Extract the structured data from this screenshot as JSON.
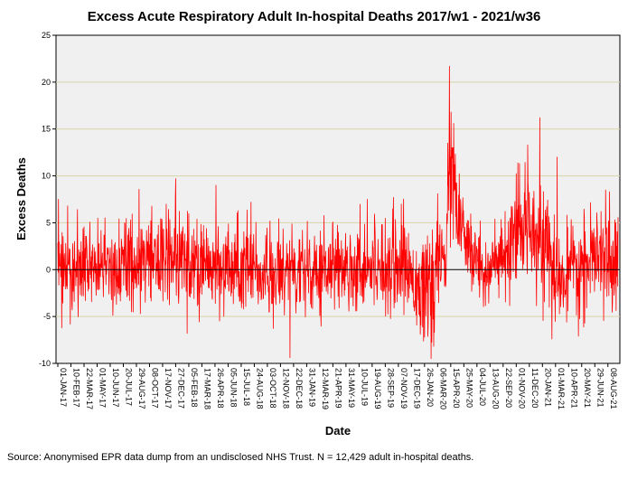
{
  "chart_data": {
    "type": "line",
    "title": "Excess Acute Respiratory Adult In-hospital Deaths 2017/w1 - 2021/w36",
    "xlabel": "Date",
    "ylabel": "Excess Deaths",
    "ylim": [
      -10,
      25
    ],
    "yticks": [
      -10,
      -5,
      0,
      5,
      10,
      15,
      20,
      25
    ],
    "grid": "horizontal",
    "reference_line": 0,
    "series_color": "#ff0000",
    "date_range": [
      "2017-01-01",
      "2021-09-08"
    ],
    "xtick_labels": [
      "01-JAN-17",
      "10-FEB-17",
      "22-MAR-17",
      "01-MAY-17",
      "10-JUN-17",
      "20-JUL-17",
      "29-AUG-17",
      "08-OCT-17",
      "17-NOV-17",
      "27-DEC-17",
      "05-FEB-18",
      "17-MAR-18",
      "26-APR-18",
      "05-JUN-18",
      "15-JUL-18",
      "24-AUG-18",
      "03-OCT-18",
      "12-NOV-18",
      "22-DEC-18",
      "31-JAN-19",
      "12-MAR-19",
      "21-APR-19",
      "31-MAY-19",
      "10-JUL-19",
      "19-AUG-19",
      "28-SEP-19",
      "07-NOV-19",
      "17-DEC-19",
      "26-JAN-20",
      "06-MAR-20",
      "15-APR-20",
      "25-MAY-20",
      "04-JUL-20",
      "13-AUG-20",
      "22-SEP-20",
      "01-NOV-20",
      "11-DEC-20",
      "20-JAN-21",
      "01-MAR-21",
      "10-APR-21",
      "20-MAY-21",
      "29-JUN-21",
      "08-AUG-21"
    ],
    "series": [
      {
        "name": "Excess Deaths",
        "profile": [
          {
            "day": 0,
            "level": 0.8,
            "spread": 3.2
          },
          {
            "day": 60,
            "level": 0.4,
            "spread": 3.0
          },
          {
            "day": 330,
            "level": 1.0,
            "spread": 3.6
          },
          {
            "day": 420,
            "level": 0.8,
            "spread": 3.2
          },
          {
            "day": 540,
            "level": 0.0,
            "spread": 3.0
          },
          {
            "day": 690,
            "level": -0.5,
            "spread": 3.4
          },
          {
            "day": 760,
            "level": 0.6,
            "spread": 3.2
          },
          {
            "day": 900,
            "level": 0.3,
            "spread": 3.0
          },
          {
            "day": 1050,
            "level": 0.8,
            "spread": 3.4
          },
          {
            "day": 1130,
            "level": -2.5,
            "spread": 3.6
          },
          {
            "day": 1185,
            "level": 2.0,
            "spread": 3.6
          },
          {
            "day": 1195,
            "level": 8.0,
            "spread": 4.0
          },
          {
            "day": 1205,
            "level": 11.0,
            "spread": 4.5
          },
          {
            "day": 1220,
            "level": 6.0,
            "spread": 3.5
          },
          {
            "day": 1245,
            "level": 2.5,
            "spread": 3.0
          },
          {
            "day": 1300,
            "level": 0.0,
            "spread": 2.8
          },
          {
            "day": 1370,
            "level": 1.0,
            "spread": 3.0
          },
          {
            "day": 1410,
            "level": 4.0,
            "spread": 3.8
          },
          {
            "day": 1450,
            "level": 5.5,
            "spread": 4.0
          },
          {
            "day": 1480,
            "level": 3.0,
            "spread": 3.8
          },
          {
            "day": 1530,
            "level": -1.5,
            "spread": 3.2
          },
          {
            "day": 1580,
            "level": 0.0,
            "spread": 3.0
          },
          {
            "day": 1630,
            "level": 0.8,
            "spread": 3.4
          },
          {
            "day": 1711,
            "level": 1.5,
            "spread": 3.6
          }
        ],
        "peaks": [
          {
            "day": 2,
            "value": 7.5
          },
          {
            "day": 12,
            "value": -6.2
          },
          {
            "day": 30,
            "value": 6.8
          },
          {
            "day": 38,
            "value": -5.8
          },
          {
            "day": 225,
            "value": -4.5
          },
          {
            "day": 360,
            "value": 9.7
          },
          {
            "day": 395,
            "value": -6.8
          },
          {
            "day": 590,
            "value": 7.2
          },
          {
            "day": 709,
            "value": -9.4
          },
          {
            "day": 945,
            "value": 7.5
          },
          {
            "day": 1025,
            "value": 7.7
          },
          {
            "day": 1120,
            "value": -7.2
          },
          {
            "day": 1140,
            "value": -9.5
          },
          {
            "day": 1191,
            "value": 13.5
          },
          {
            "day": 1196,
            "value": 21.7
          },
          {
            "day": 1201,
            "value": 16.8
          },
          {
            "day": 1209,
            "value": 15.6
          },
          {
            "day": 1435,
            "value": 13.3
          },
          {
            "day": 1472,
            "value": 16.2
          },
          {
            "day": 1509,
            "value": -7.4
          },
          {
            "day": 1525,
            "value": 12.0
          },
          {
            "day": 1590,
            "value": -7.1
          },
          {
            "day": 1685,
            "value": 8.3
          }
        ]
      }
    ]
  },
  "source_note": "Source: Anonymised EPR data dump from an undisclosed NHS Trust. N = 12,429 adult in-hospital deaths."
}
